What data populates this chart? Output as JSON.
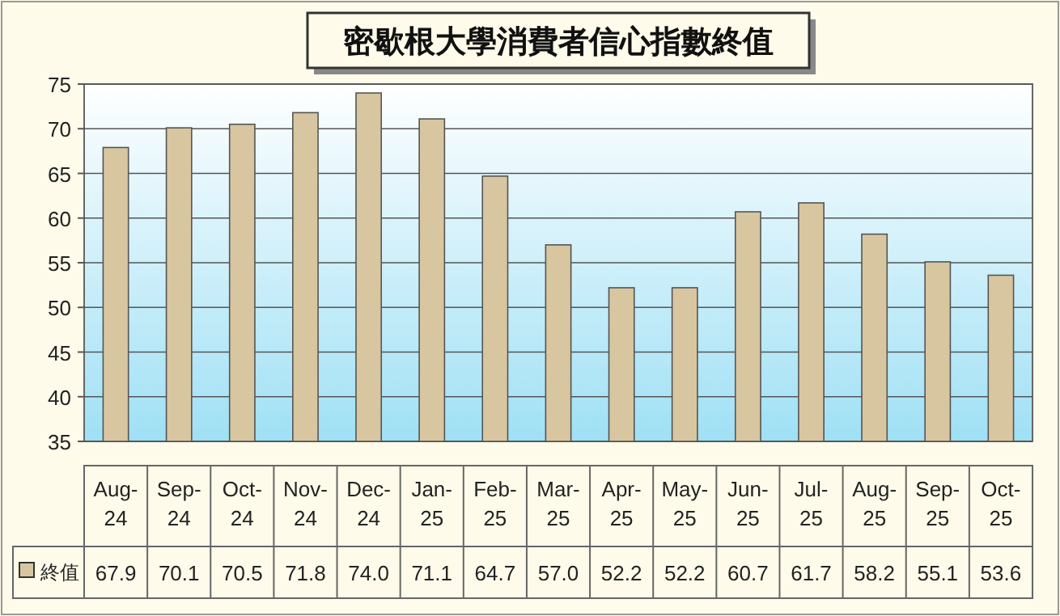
{
  "chart_data": {
    "type": "bar",
    "title": "密歇根大學消費者信心指數終值",
    "categories": [
      "Aug-24",
      "Sep-24",
      "Oct-24",
      "Nov-24",
      "Dec-24",
      "Jan-25",
      "Feb-25",
      "Mar-25",
      "Apr-25",
      "May-25",
      "Jun-25",
      "Jul-25",
      "Aug-25",
      "Sep-25",
      "Oct-25"
    ],
    "series": [
      {
        "name": "終值",
        "color": "#d8c6a0",
        "values": [
          67.9,
          70.1,
          70.5,
          71.8,
          74.0,
          71.1,
          64.7,
          57.0,
          52.2,
          52.2,
          60.7,
          61.7,
          58.2,
          55.1,
          53.6
        ],
        "value_labels": [
          "67.9",
          "70.1",
          "70.5",
          "71.8",
          "74.0",
          "71.1",
          "64.7",
          "57.0",
          "52.2",
          "52.2",
          "60.7",
          "61.7",
          "58.2",
          "55.1",
          "53.6"
        ]
      }
    ],
    "ylim": [
      35,
      75
    ],
    "yticks": [
      35,
      40,
      45,
      50,
      55,
      60,
      65,
      70,
      75
    ],
    "grid": "y",
    "legend": "bottom left"
  }
}
